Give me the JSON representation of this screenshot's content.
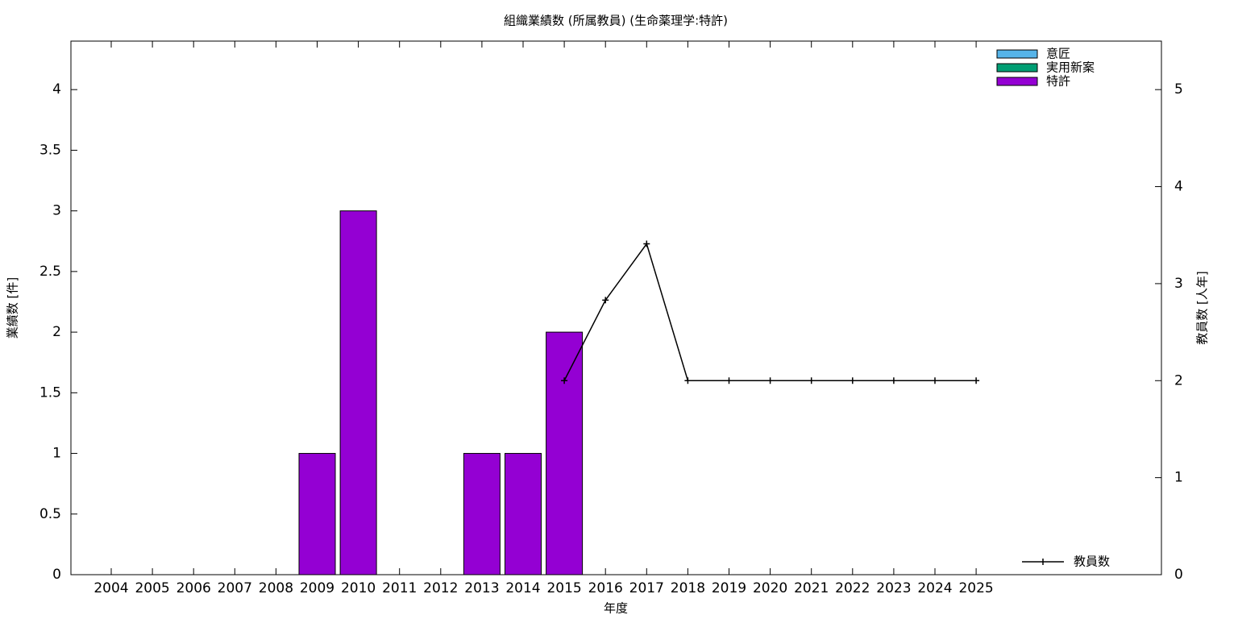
{
  "chart_data": {
    "type": "bar",
    "stacked": true,
    "title": "組織業績数 (所属教員) (生命薬理学:特許)",
    "x_label": "年度",
    "y_label": "業績数 [件]",
    "y2_label": "教員数 [人年]",
    "categories": [
      "2004",
      "2005",
      "2006",
      "2007",
      "2008",
      "2009",
      "2010",
      "2011",
      "2012",
      "2013",
      "2014",
      "2015",
      "2016",
      "2017",
      "2018",
      "2019",
      "2020",
      "2021",
      "2022",
      "2023",
      "2024",
      "2025"
    ],
    "series": [
      {
        "name": "意匠",
        "color": "#56b4e9",
        "values": [
          0,
          0,
          0,
          0,
          0,
          0,
          0,
          0,
          0,
          0,
          0,
          0,
          0,
          0,
          0,
          0,
          0,
          0,
          0,
          0,
          0,
          0
        ]
      },
      {
        "name": "実用新案",
        "color": "#009e73",
        "values": [
          0,
          0,
          0,
          0,
          0,
          0,
          0,
          0,
          0,
          0,
          0,
          0,
          0,
          0,
          0,
          0,
          0,
          0,
          0,
          0,
          0,
          0
        ]
      },
      {
        "name": "特許",
        "color": "#9400d3",
        "values": [
          0,
          0,
          0,
          0,
          0,
          1,
          3,
          0,
          0,
          1,
          1,
          2,
          0,
          0,
          0,
          0,
          0,
          0,
          0,
          0,
          0,
          0
        ]
      },
      {
        "name": "教員数",
        "type": "line",
        "axis": "y2",
        "color": "#000000",
        "values": [
          null,
          null,
          null,
          null,
          null,
          null,
          null,
          null,
          null,
          null,
          null,
          2,
          2.83,
          3.41,
          2,
          2,
          2,
          2,
          2,
          2,
          2,
          2
        ]
      }
    ],
    "ylim": [
      0,
      4.4
    ],
    "yticks": [
      0,
      0.5,
      1,
      1.5,
      2,
      2.5,
      3,
      3.5,
      4
    ],
    "y2lim": [
      0,
      5.5
    ],
    "y2ticks": [
      0,
      1,
      2,
      3,
      4,
      5
    ],
    "legend": "top right",
    "legend_y2": "bottom right"
  }
}
